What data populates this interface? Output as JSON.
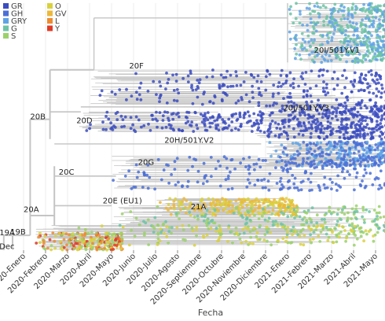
{
  "chart_data": {
    "type": "scatter",
    "subtype": "time-scaled phylogenetic tree",
    "title": "",
    "xlabel": "Fecha",
    "ylabel": "",
    "grid": true,
    "legend_position": "top-left",
    "x_ticks": [
      "2020-Enero",
      "2020-Febrero",
      "2020-Marzo",
      "2020-Abril",
      "2020-Mayo",
      "2020-Junio",
      "2020-Julio",
      "2020-Agosto",
      "2020-Septiembre",
      "2020-Octubre",
      "2020-Noviembre",
      "2020-Diciembre",
      "2021-Enero",
      "2021-Febrero",
      "2021-Marzo",
      "2021-Abril",
      "2021-Mayo"
    ],
    "x_range": [
      "2019-Dec",
      "2021-May"
    ],
    "legend": [
      {
        "name": "GR",
        "color": "#3b4cc0"
      },
      {
        "name": "GH",
        "color": "#4a6fd6"
      },
      {
        "name": "GRY",
        "color": "#5fa3e6"
      },
      {
        "name": "G",
        "color": "#6cc3a6"
      },
      {
        "name": "S",
        "color": "#9bd16b"
      },
      {
        "name": "O",
        "color": "#d9d13e"
      },
      {
        "name": "GV",
        "color": "#ecb73a"
      },
      {
        "name": "L",
        "color": "#ee8a30"
      },
      {
        "name": "Y",
        "color": "#e03a25"
      }
    ],
    "clade_labels": [
      {
        "text": "20I/501Y.V1",
        "t": 13.2,
        "row": 0.2
      },
      {
        "text": "20F",
        "t": 4.8,
        "row": 0.265
      },
      {
        "text": "20J/501Y.V3",
        "t": 11.8,
        "row": 0.435
      },
      {
        "text": "20B",
        "t": 0.3,
        "row": 0.47
      },
      {
        "text": "20D",
        "t": 2.4,
        "row": 0.485
      },
      {
        "text": "20H/501Y.V2",
        "t": 6.4,
        "row": 0.565
      },
      {
        "text": "20G",
        "t": 5.2,
        "row": 0.655
      },
      {
        "text": "20C",
        "t": 1.6,
        "row": 0.695
      },
      {
        "text": "20E (EU1)",
        "t": 3.6,
        "row": 0.81
      },
      {
        "text": "21A",
        "t": 7.6,
        "row": 0.835
      },
      {
        "text": "20A",
        "t": 0.0,
        "row": 0.845
      },
      {
        "text": "19A",
        "t": -1.1,
        "row": 0.94
      },
      {
        "text": "19B",
        "t": -0.6,
        "row": 0.937
      },
      {
        "text": "Dec",
        "t": -1.1,
        "row": 0.995
      }
    ],
    "series": [
      {
        "name": "20I/501Y.V1",
        "color_mix": [
          "G",
          "GRY"
        ],
        "row_range": [
          0.0,
          0.24
        ],
        "t_range": [
          12.0,
          16.5
        ],
        "density": 1.0
      },
      {
        "name": "20F",
        "color_mix": [
          "GR"
        ],
        "row_range": [
          0.27,
          0.41
        ],
        "t_range": [
          3.0,
          16.5
        ],
        "density": 0.5
      },
      {
        "name": "20J/501Y.V3",
        "color_mix": [
          "GR"
        ],
        "row_range": [
          0.41,
          0.55
        ],
        "t_range": [
          10.5,
          16.5
        ],
        "density": 0.8
      },
      {
        "name": "20D",
        "color_mix": [
          "GR"
        ],
        "row_range": [
          0.44,
          0.52
        ],
        "t_range": [
          2.5,
          11.0
        ],
        "density": 0.3
      },
      {
        "name": "20H/501Y.V2",
        "color_mix": [
          "GH",
          "GRY"
        ],
        "row_range": [
          0.56,
          0.66
        ],
        "t_range": [
          11.0,
          16.5
        ],
        "density": 0.6
      },
      {
        "name": "20G",
        "color_mix": [
          "GH"
        ],
        "row_range": [
          0.62,
          0.76
        ],
        "t_range": [
          4.0,
          16.5
        ],
        "density": 0.45
      },
      {
        "name": "21A",
        "color_mix": [
          "GV",
          "O"
        ],
        "row_range": [
          0.79,
          0.86
        ],
        "t_range": [
          6.0,
          12.5
        ],
        "density": 0.5
      },
      {
        "name": "20E (EU1)",
        "color_mix": [
          "G",
          "S"
        ],
        "row_range": [
          0.82,
          0.94
        ],
        "t_range": [
          4.0,
          16.5
        ],
        "density": 0.45
      },
      {
        "name": "19B",
        "color_mix": [
          "S",
          "O",
          "L",
          "Y"
        ],
        "row_range": [
          0.93,
          1.0
        ],
        "t_range": [
          0.5,
          4.5
        ],
        "density": 0.4
      },
      {
        "name": "20A",
        "color_mix": [
          "S",
          "O"
        ],
        "row_range": [
          0.9,
          0.98
        ],
        "t_range": [
          0.5,
          16.0
        ],
        "density": 0.3
      }
    ]
  }
}
